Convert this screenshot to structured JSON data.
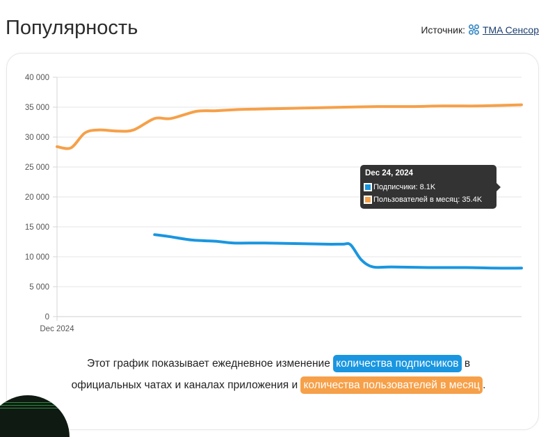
{
  "header": {
    "title": "Популярность",
    "source_label": "Источник:",
    "source_link": "TMA Сенсор"
  },
  "tooltip": {
    "date": "Dec 24, 2024",
    "subscribers": "Подписчики: 8.1K",
    "users": "Пользователей в месяц: 35.4K"
  },
  "caption": {
    "line1_prefix": "Этот график показывает ежедневное изменение",
    "pill_subscribers": "количества подписчиков",
    "line1_suffix": "в",
    "line2_prefix": "официальных чатах и каналах приложения и",
    "pill_users": "количества пользователей в месяц",
    "line2_suffix": "."
  },
  "colors": {
    "subscribers": "#1a96e0",
    "users": "#f6a049",
    "grid": "#e5e5e5",
    "tooltip_bg": "#333333"
  },
  "chart_data": {
    "type": "line",
    "ylim": [
      0,
      40000
    ],
    "yticks": [
      0,
      5000,
      10000,
      15000,
      20000,
      25000,
      30000,
      35000,
      40000
    ],
    "ytick_labels": [
      "0",
      "5 000",
      "10 000",
      "15 000",
      "20 000",
      "25 000",
      "30 000",
      "35 000",
      "40 000"
    ],
    "xtick_labels": [
      "Dec 2024"
    ],
    "x_range": [
      0,
      1
    ],
    "series": [
      {
        "name": "Пользователей в месяц",
        "color": "#f6a049",
        "points": [
          [
            0.0,
            28400
          ],
          [
            0.03,
            28200
          ],
          [
            0.06,
            30700
          ],
          [
            0.09,
            31200
          ],
          [
            0.13,
            31000
          ],
          [
            0.165,
            31200
          ],
          [
            0.21,
            33100
          ],
          [
            0.245,
            33100
          ],
          [
            0.3,
            34300
          ],
          [
            0.34,
            34400
          ],
          [
            0.39,
            34600
          ],
          [
            0.44,
            34700
          ],
          [
            0.5,
            34800
          ],
          [
            0.56,
            34900
          ],
          [
            0.62,
            35000
          ],
          [
            0.69,
            35100
          ],
          [
            0.76,
            35100
          ],
          [
            0.83,
            35200
          ],
          [
            0.9,
            35200
          ],
          [
            0.96,
            35300
          ],
          [
            1.0,
            35400
          ]
        ]
      },
      {
        "name": "Подписчики",
        "color": "#1a96e0",
        "points": [
          [
            0.21,
            13700
          ],
          [
            0.24,
            13400
          ],
          [
            0.29,
            12800
          ],
          [
            0.34,
            12600
          ],
          [
            0.38,
            12300
          ],
          [
            0.44,
            12300
          ],
          [
            0.52,
            12200
          ],
          [
            0.58,
            12100
          ],
          [
            0.615,
            12100
          ],
          [
            0.632,
            12000
          ],
          [
            0.655,
            9500
          ],
          [
            0.68,
            8300
          ],
          [
            0.72,
            8300
          ],
          [
            0.8,
            8200
          ],
          [
            0.88,
            8200
          ],
          [
            0.94,
            8100
          ],
          [
            1.0,
            8100
          ]
        ]
      }
    ]
  }
}
